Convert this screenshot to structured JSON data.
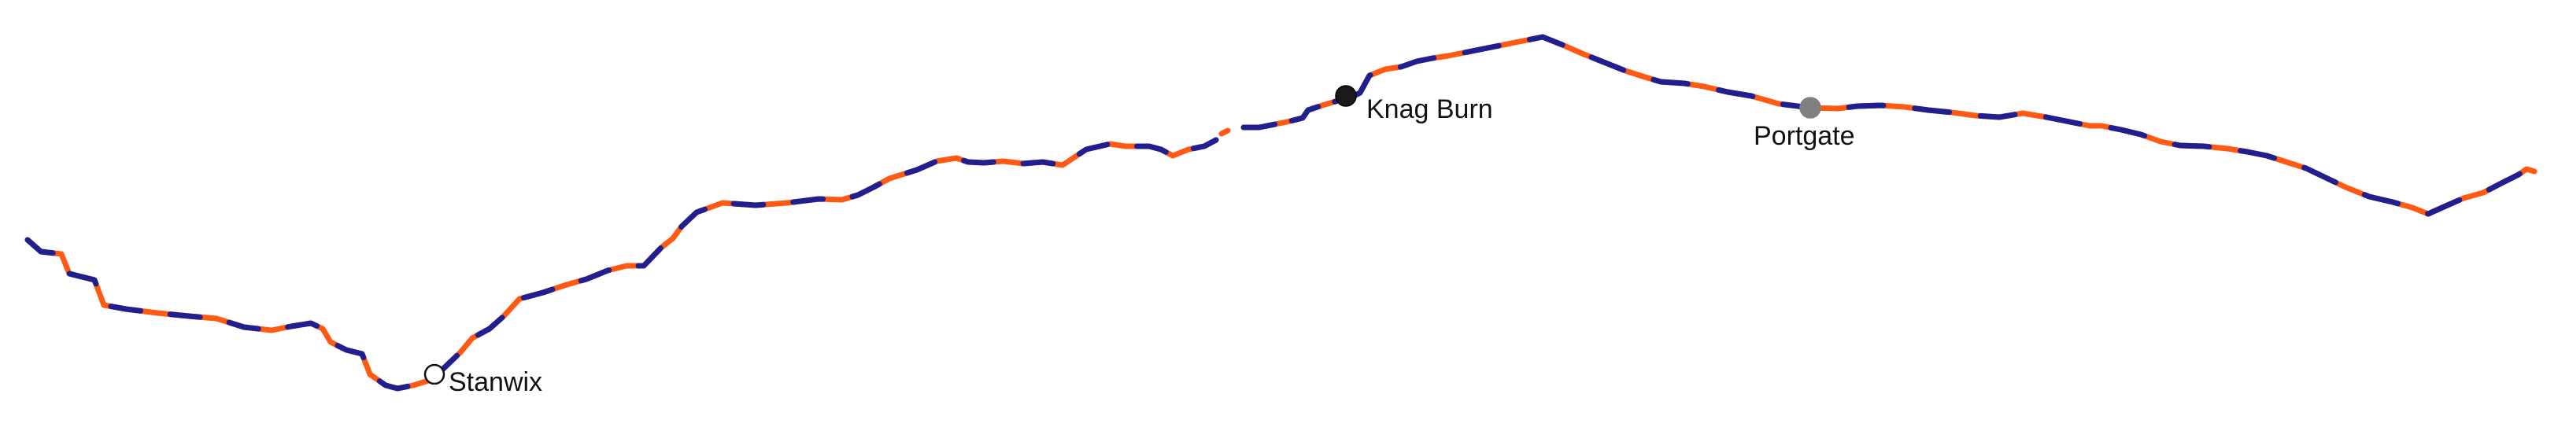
{
  "map": {
    "route": {
      "colors": {
        "blue": "#1f1f8f",
        "orange": "#ff5a14"
      }
    },
    "places": [
      {
        "name": "Stanwix",
        "marker": "white"
      },
      {
        "name": "Knag Burn",
        "marker": "black"
      },
      {
        "name": "Portgate",
        "marker": "grey"
      }
    ]
  }
}
